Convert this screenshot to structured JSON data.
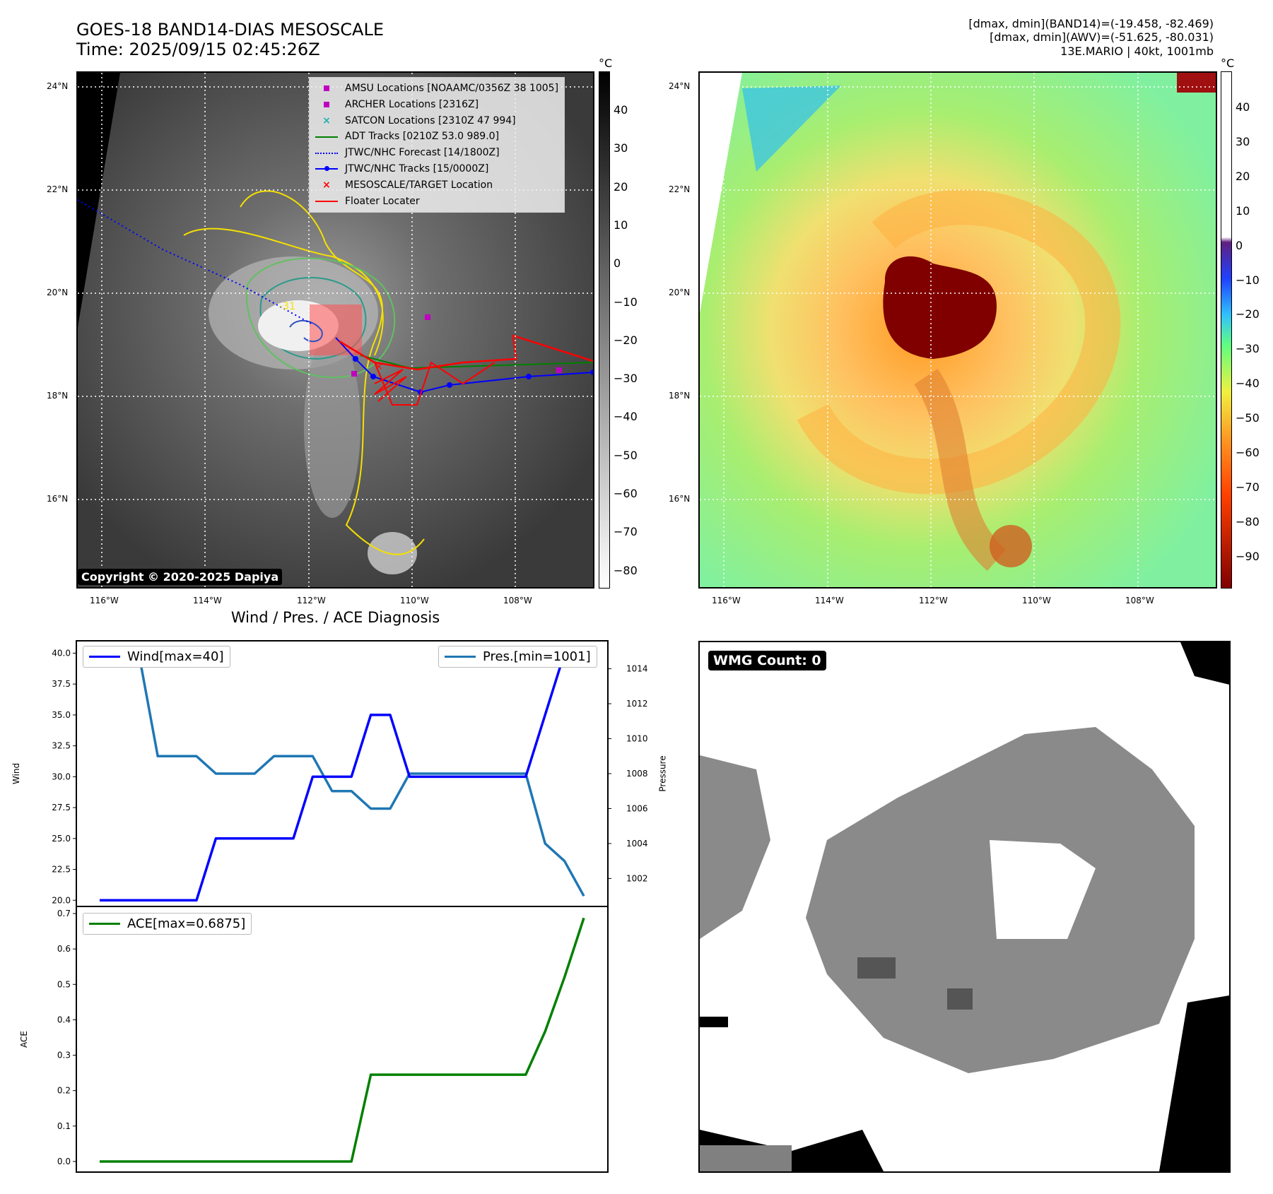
{
  "header": {
    "title_line1": "GOES-18 BAND14-DIAS MESOSCALE",
    "title_line2": "Time: 2025/09/15 02:45:26Z",
    "meta_line1": "[dmax, dmin](BAND14)=(-19.458, -82.469)",
    "meta_line2": "[dmax, dmin](AWV)=(-51.625, -80.031)",
    "meta_line3": "13E.MARIO | 40kt, 1001mb"
  },
  "maps": {
    "lon_labels": [
      "116°W",
      "114°W",
      "112°W",
      "110°W",
      "108°W"
    ],
    "lat_labels": [
      "24°N",
      "22°N",
      "20°N",
      "18°N",
      "16°N"
    ],
    "unit": "°C",
    "ir_colorbar_ticks": [
      "40",
      "30",
      "20",
      "10",
      "0",
      "−10",
      "−20",
      "−30",
      "−40",
      "−50",
      "−60",
      "−70",
      "−80"
    ],
    "awv_colorbar_ticks": [
      "40",
      "30",
      "20",
      "10",
      "0",
      "−10",
      "−20",
      "−30",
      "−40",
      "−50",
      "−60",
      "−70",
      "−80",
      "−90"
    ],
    "copyright": "Copyright © 2020-2025 Dapiya",
    "legend": [
      {
        "label": "AMSU Locations [NOAAMC/0356Z 38 1005]",
        "marker": "square",
        "color": "#c000c0"
      },
      {
        "label": "ARCHER Locations [2316Z]",
        "marker": "square",
        "color": "#c000c0"
      },
      {
        "label": "SATCON Locations [2310Z 47 994]",
        "marker": "x",
        "color": "#20b0b0"
      },
      {
        "label": "ADT Tracks [0210Z 53.0 989.0]",
        "marker": "line",
        "color": "#008000"
      },
      {
        "label": "JTWC/NHC Forecast [14/1800Z]",
        "marker": "dotted",
        "color": "#0000ff"
      },
      {
        "label": "JTWC/NHC Tracks [15/0000Z]",
        "marker": "line-dot",
        "color": "#0000ff"
      },
      {
        "label": "MESOSCALE/TARGET Location",
        "marker": "x",
        "color": "#ff0000"
      },
      {
        "label": "Floater Locater",
        "marker": "line",
        "color": "#ff0000"
      }
    ],
    "contour_label": "-31",
    "wmg_count": "WMG Count: 0"
  },
  "diagnosis": {
    "title": "Wind / Pres. / ACE Diagnosis",
    "wind_ylabel": "Wind",
    "pres_ylabel": "Pressure",
    "ace_ylabel": "ACE",
    "wind_legend": "Wind[max=40]",
    "pres_legend": "Pres.[min=1001]",
    "ace_legend": "ACE[max=0.6875]"
  },
  "chart_data": [
    {
      "type": "line",
      "title": "Wind / Pres. / ACE Diagnosis",
      "x": [
        0,
        1,
        2,
        3,
        4,
        5,
        6,
        7,
        8,
        9,
        10,
        11,
        12,
        13,
        14,
        15,
        16,
        17,
        18,
        19,
        20,
        21,
        22,
        23,
        24,
        25
      ],
      "series": [
        {
          "name": "Wind[max=40]",
          "color": "#0000ff",
          "axis": "left",
          "values": [
            20,
            20,
            20,
            20,
            20,
            20,
            25,
            25,
            25,
            25,
            25,
            30,
            30,
            30,
            35,
            35,
            30,
            30,
            30,
            30,
            30,
            30,
            30,
            35,
            40,
            40
          ]
        },
        {
          "name": "Pres.[min=1001]",
          "color": "#1f77b4",
          "axis": "right",
          "values": [
            1015,
            1015,
            1015,
            1009,
            1009,
            1009,
            1008,
            1008,
            1008,
            1009,
            1009,
            1009,
            1007,
            1007,
            1006,
            1006,
            1008,
            1008,
            1008,
            1008,
            1008,
            1008,
            1008,
            1004,
            1003,
            1001
          ]
        }
      ],
      "ylabel": "Wind",
      "ylim": [
        19.5,
        41
      ],
      "y2label": "Pressure",
      "y2lim": [
        1000.4,
        1015.6
      ],
      "yticks": [
        20.0,
        22.5,
        25.0,
        27.5,
        30.0,
        32.5,
        35.0,
        37.5,
        40.0
      ],
      "y2ticks": [
        1002,
        1004,
        1006,
        1008,
        1010,
        1012,
        1014
      ]
    },
    {
      "type": "line",
      "x": [
        0,
        1,
        2,
        3,
        4,
        5,
        6,
        7,
        8,
        9,
        10,
        11,
        12,
        13,
        14,
        15,
        16,
        17,
        18,
        19,
        20,
        21,
        22,
        23,
        24,
        25
      ],
      "series": [
        {
          "name": "ACE[max=0.6875]",
          "color": "#008000",
          "values": [
            0,
            0,
            0,
            0,
            0,
            0,
            0,
            0,
            0,
            0,
            0,
            0,
            0,
            0,
            0.245,
            0.245,
            0.245,
            0.245,
            0.245,
            0.245,
            0.245,
            0.245,
            0.245,
            0.367,
            0.52,
            0.6875
          ]
        }
      ],
      "ylabel": "ACE",
      "ylim": [
        -0.03,
        0.72
      ],
      "yticks": [
        0.0,
        0.1,
        0.2,
        0.3,
        0.4,
        0.5,
        0.6,
        0.7
      ]
    }
  ]
}
